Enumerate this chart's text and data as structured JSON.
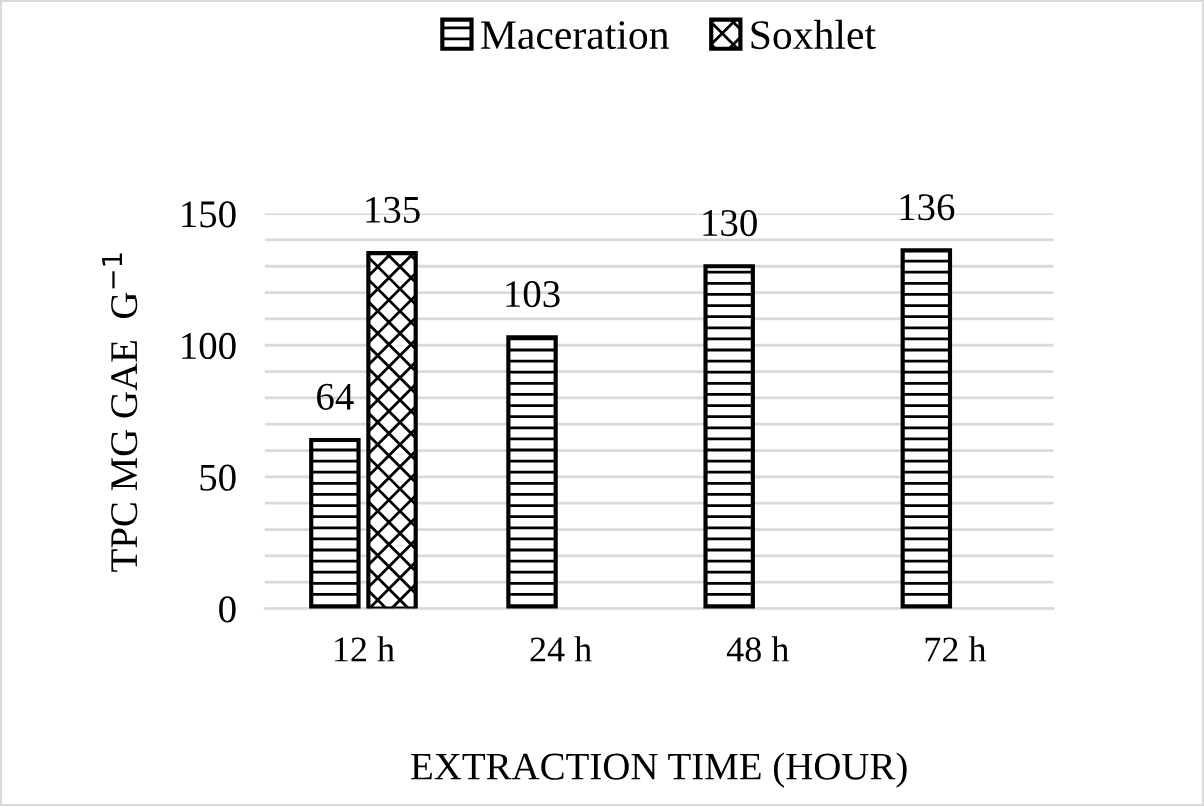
{
  "chart_data": {
    "type": "bar",
    "categories": [
      "12 h",
      "24 h",
      "48 h",
      "72 h"
    ],
    "series": [
      {
        "name": "Maceration",
        "color": "#000000",
        "values": [
          64,
          103,
          130,
          136
        ]
      },
      {
        "name": "Soxhlet",
        "color": "#000000",
        "values": [
          135,
          null,
          null,
          null
        ]
      }
    ],
    "xlabel": "EXTRACTION TIME (HOUR)",
    "ylabel": "TPC MG GAE  G$^{−1}$",
    "ylim": [
      0,
      150
    ],
    "yticks": [
      0,
      {
        "value": 10,
        "label": null
      },
      {
        "value": 20,
        "label": null
      },
      {
        "value": 30,
        "label": null
      },
      {
        "value": 40,
        "label": null
      },
      50,
      {
        "value": 60,
        "label": null
      },
      {
        "value": 70,
        "label": null
      },
      {
        "value": 80,
        "label": null
      },
      {
        "value": 90,
        "label": null
      },
      100,
      {
        "value": 110,
        "label": null
      },
      {
        "value": 120,
        "label": null
      },
      {
        "value": 130,
        "label": null
      },
      {
        "value": 140,
        "label": null
      },
      150
    ],
    "grid": "y",
    "legend": "top",
    "data_labels": true
  }
}
